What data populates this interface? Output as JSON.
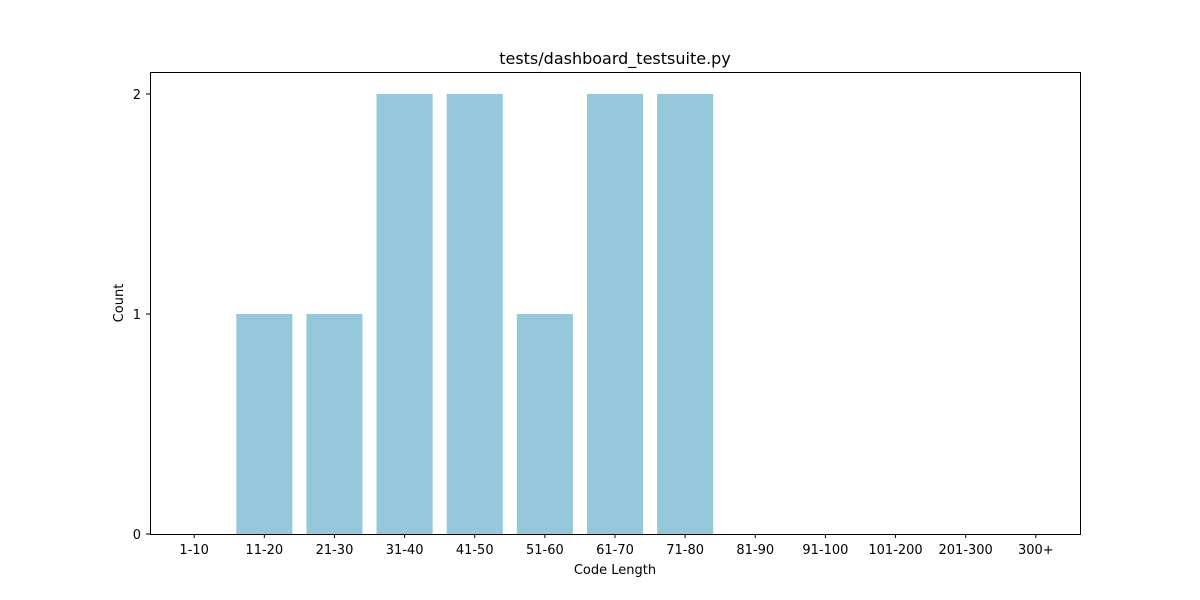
{
  "chart_data": {
    "type": "bar",
    "title": "tests/dashboard_testsuite.py",
    "xlabel": "Code Length",
    "ylabel": "Count",
    "categories": [
      "1-10",
      "11-20",
      "21-30",
      "31-40",
      "41-50",
      "51-60",
      "61-70",
      "71-80",
      "81-90",
      "91-100",
      "101-200",
      "201-300",
      "300+"
    ],
    "values": [
      0,
      1,
      1,
      2,
      2,
      1,
      2,
      2,
      0,
      0,
      0,
      0,
      0
    ],
    "yticks": [
      0,
      1,
      2
    ],
    "ylim": [
      0,
      2.1
    ],
    "grid": false,
    "bar_color": "#96c8dc"
  }
}
